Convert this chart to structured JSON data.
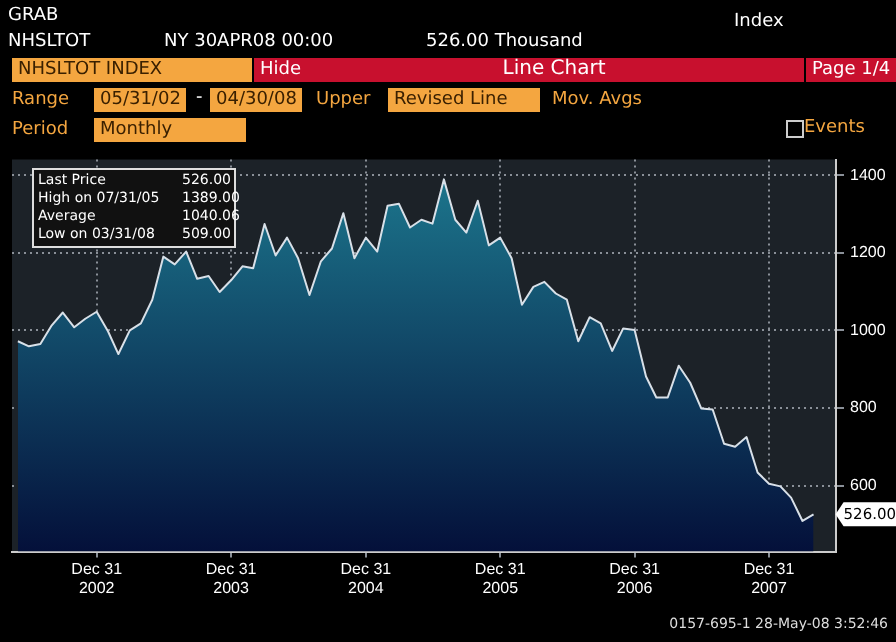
{
  "chart_data": {
    "type": "area",
    "title": "Line Chart",
    "x": [
      "2002-05-31",
      "2002-06-30",
      "2002-07-31",
      "2002-08-31",
      "2002-09-30",
      "2002-10-31",
      "2002-11-30",
      "2002-12-31",
      "2003-01-31",
      "2003-02-28",
      "2003-03-31",
      "2003-04-30",
      "2003-05-31",
      "2003-06-30",
      "2003-07-31",
      "2003-08-31",
      "2003-09-30",
      "2003-10-31",
      "2003-11-30",
      "2003-12-31",
      "2004-01-31",
      "2004-02-29",
      "2004-03-31",
      "2004-04-30",
      "2004-05-31",
      "2004-06-30",
      "2004-07-31",
      "2004-08-31",
      "2004-09-30",
      "2004-10-31",
      "2004-11-30",
      "2004-12-31",
      "2005-01-31",
      "2005-02-28",
      "2005-03-31",
      "2005-04-30",
      "2005-05-31",
      "2005-06-30",
      "2005-07-31",
      "2005-08-31",
      "2005-09-30",
      "2005-10-31",
      "2005-11-30",
      "2005-12-31",
      "2006-01-31",
      "2006-02-28",
      "2006-03-31",
      "2006-04-30",
      "2006-05-31",
      "2006-06-30",
      "2006-07-31",
      "2006-08-31",
      "2006-09-30",
      "2006-10-31",
      "2006-11-30",
      "2006-12-31",
      "2007-01-31",
      "2007-02-28",
      "2007-03-31",
      "2007-04-30",
      "2007-05-31",
      "2007-06-30",
      "2007-07-31",
      "2007-08-31",
      "2007-09-30",
      "2007-10-31",
      "2007-11-30",
      "2007-12-31",
      "2008-01-31",
      "2008-02-29",
      "2008-03-31",
      "2008-04-30"
    ],
    "series": [
      {
        "color": "#1d7a90",
        "values": [
          972,
          959,
          965,
          1013,
          1046,
          1008,
          1030,
          1048,
          997,
          939,
          1000,
          1018,
          1079,
          1190,
          1170,
          1203,
          1133,
          1140,
          1099,
          1129,
          1165,
          1160,
          1274,
          1193,
          1239,
          1186,
          1091,
          1178,
          1211,
          1302,
          1186,
          1239,
          1203,
          1321,
          1326,
          1265,
          1285,
          1275,
          1389,
          1285,
          1252,
          1334,
          1219,
          1239,
          1186,
          1066,
          1112,
          1125,
          1095,
          1079,
          972,
          1034,
          1018,
          947,
          1005,
          1001,
          881,
          827,
          827,
          909,
          865,
          799,
          796,
          708,
          700,
          725,
          634,
          605,
          598,
          569,
          509,
          526
        ]
      }
    ],
    "xlim": [
      "2002-05-15",
      "2008-06-30"
    ],
    "xticks": [
      {
        "value": "2002-12-31",
        "label": "Dec 31\n2002"
      },
      {
        "value": "2003-12-31",
        "label": "Dec 31\n2003"
      },
      {
        "value": "2004-12-31",
        "label": "Dec 31\n2004"
      },
      {
        "value": "2005-12-31",
        "label": "Dec 31\n2005"
      },
      {
        "value": "2006-12-31",
        "label": "Dec 31\n2006"
      },
      {
        "value": "2007-12-31",
        "label": "Dec 31\n2007"
      }
    ],
    "ylim": [
      430,
      1440
    ],
    "yticks": [
      600,
      800,
      1000,
      1200,
      1400
    ],
    "grid": true,
    "legend": false,
    "marker": "none",
    "annotations": [
      "GRAB",
      "NHSLTOT",
      "NY 30APR08 00:00",
      "526.00 Thousand",
      "Index",
      "NHSLTOT INDEX",
      "Hide",
      "Page 1/4",
      "Range",
      "05/31/02",
      "-",
      "04/30/08",
      "Upper",
      "Revised Line",
      "Mov. Avgs",
      "Period",
      "Monthly",
      "Events",
      "Last Price",
      "526.00",
      "High on 07/31/05",
      "1389.00",
      "Average",
      "1040.06",
      "Low on 03/31/08",
      "509.00",
      {
        "text": "526.00",
        "x": "2008-04-30",
        "y": 526
      },
      "0157-695-1 28-May-08 3:52:46"
    ]
  }
}
